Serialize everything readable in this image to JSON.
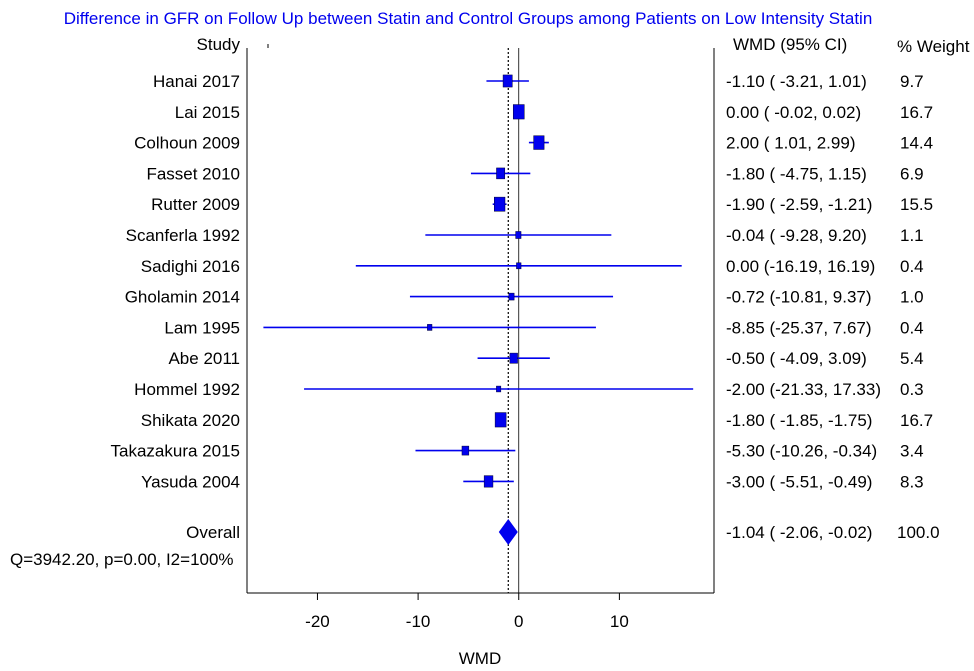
{
  "chart_data": {
    "type": "forest",
    "title": "Difference in GFR on Follow Up between Statin and Control Groups among Patients on Low Intensity Statin",
    "xlabel": "WMD",
    "column_headers": {
      "study": "Study",
      "ci": "WMD (95% CI)",
      "weight": "% Weight"
    },
    "xlim": [
      -27,
      19.4
    ],
    "xticks": [
      -20,
      -10,
      0,
      10
    ],
    "reference_line": 0,
    "colors": {
      "title": "#0000ee",
      "marks": "#0000ee",
      "text": "#000000"
    },
    "studies": [
      {
        "name": "Hanai 2017",
        "wmd": -1.1,
        "lower": -3.21,
        "upper": 1.01,
        "ci_text": "-1.10  ( -3.21,  1.01)",
        "weight": 9.7,
        "weight_text": "9.7"
      },
      {
        "name": "Lai 2015",
        "wmd": 0.0,
        "lower": -0.02,
        "upper": 0.02,
        "ci_text": "0.00  ( -0.02,  0.02)",
        "weight": 16.7,
        "weight_text": "16.7"
      },
      {
        "name": "Colhoun 2009",
        "wmd": 2.0,
        "lower": 1.01,
        "upper": 2.99,
        "ci_text": "2.00  (  1.01,  2.99)",
        "weight": 14.4,
        "weight_text": "14.4"
      },
      {
        "name": "Fasset 2010",
        "wmd": -1.8,
        "lower": -4.75,
        "upper": 1.15,
        "ci_text": "-1.80  ( -4.75,  1.15)",
        "weight": 6.9,
        "weight_text": "6.9"
      },
      {
        "name": "Rutter 2009",
        "wmd": -1.9,
        "lower": -2.59,
        "upper": -1.21,
        "ci_text": "-1.90  ( -2.59, -1.21)",
        "weight": 15.5,
        "weight_text": "15.5"
      },
      {
        "name": "Scanferla 1992",
        "wmd": -0.04,
        "lower": -9.28,
        "upper": 9.2,
        "ci_text": "-0.04  ( -9.28,  9.20)",
        "weight": 1.1,
        "weight_text": "1.1"
      },
      {
        "name": "Sadighi 2016",
        "wmd": 0.0,
        "lower": -16.19,
        "upper": 16.19,
        "ci_text": "0.00  (-16.19, 16.19)",
        "weight": 0.4,
        "weight_text": "0.4"
      },
      {
        "name": "Gholamin 2014",
        "wmd": -0.72,
        "lower": -10.81,
        "upper": 9.37,
        "ci_text": "-0.72  (-10.81,  9.37)",
        "weight": 1.0,
        "weight_text": "1.0"
      },
      {
        "name": "Lam 1995",
        "wmd": -8.85,
        "lower": -25.37,
        "upper": 7.67,
        "ci_text": "-8.85  (-25.37,  7.67)",
        "weight": 0.4,
        "weight_text": "0.4"
      },
      {
        "name": "Abe 2011",
        "wmd": -0.5,
        "lower": -4.09,
        "upper": 3.09,
        "ci_text": "-0.50  ( -4.09,  3.09)",
        "weight": 5.4,
        "weight_text": "5.4"
      },
      {
        "name": "Hommel 1992",
        "wmd": -2.0,
        "lower": -21.33,
        "upper": 17.33,
        "ci_text": "-2.00  (-21.33, 17.33)",
        "weight": 0.3,
        "weight_text": "0.3"
      },
      {
        "name": "Shikata 2020",
        "wmd": -1.8,
        "lower": -1.85,
        "upper": -1.75,
        "ci_text": "-1.80  ( -1.85, -1.75)",
        "weight": 16.7,
        "weight_text": "16.7"
      },
      {
        "name": "Takazakura 2015",
        "wmd": -5.3,
        "lower": -10.26,
        "upper": -0.34,
        "ci_text": "-5.30  (-10.26, -0.34)",
        "weight": 3.4,
        "weight_text": "3.4"
      },
      {
        "name": "Yasuda 2004",
        "wmd": -3.0,
        "lower": -5.51,
        "upper": -0.49,
        "ci_text": "-3.00  ( -5.51, -0.49)",
        "weight": 8.3,
        "weight_text": "8.3"
      }
    ],
    "overall": {
      "name": "Overall",
      "wmd": -1.04,
      "lower": -2.06,
      "upper": -0.02,
      "ci_text": "-1.04  ( -2.06, -0.02)",
      "weight": 100.0,
      "weight_text": "100.0"
    },
    "heterogeneity": "Q=3942.20, p=0.00, I2=100%"
  }
}
